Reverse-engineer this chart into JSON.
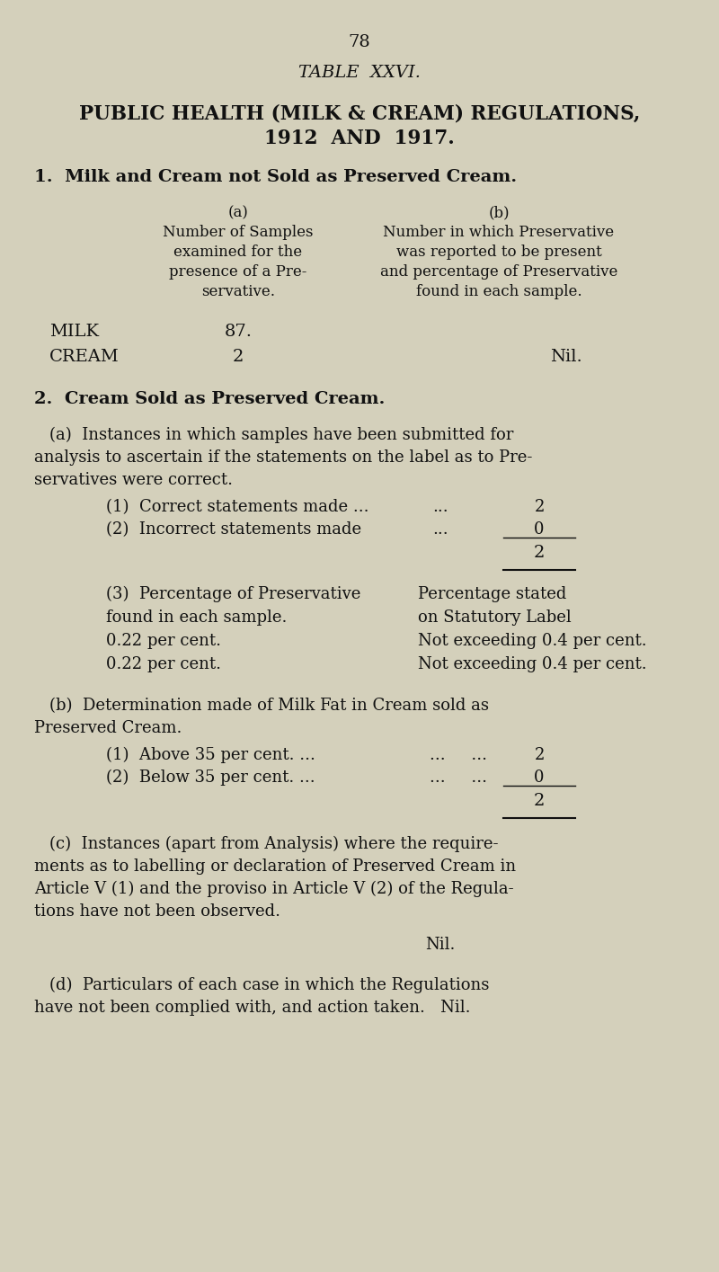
{
  "bg_color": "#d4d0bb",
  "text_color": "#111111",
  "page_number": "78",
  "table_title": "TABLE  XXVI.",
  "main_title_line1": "PUBLIC HEALTH (MILK & CREAM) REGULATIONS,",
  "main_title_line2": "1912  AND  1917.",
  "section1_heading": "1.  Milk and Cream not Sold as Preserved Cream.",
  "col_a_header_lines": [
    "(a)",
    "Number of Samples",
    "examined for the",
    "presence of a Pre-",
    "servative."
  ],
  "col_b_header_lines": [
    "(b)",
    "Number in which Preservative",
    "was reported to be present",
    "and percentage of Preservative",
    "found in each sample."
  ],
  "milk_label": "MILK",
  "milk_value": "87.",
  "cream_label": "CREAM",
  "cream_value": "2",
  "cream_b_value": "Nil.",
  "section2_heading": "2.  Cream Sold as Preserved Cream.",
  "section2a_intro_lines": [
    "(a)  Instances in which samples have been submitted for",
    "analysis to ascertain if the statements on the label as to Pre-",
    "servatives were correct."
  ],
  "s2a_item1_left": "(1)  Correct statements made ...",
  "s2a_item1_dots": "...",
  "s2a_item1_val": "2",
  "s2a_item2_left": "(2)  Incorrect statements made",
  "s2a_item2_dots": "...",
  "s2a_item2_val": "0",
  "s2a_total": "2",
  "s2a3_left_lines": [
    "(3)  Percentage of Preservative",
    "found in each sample.",
    "0.22 per cent.",
    "0.22 per cent."
  ],
  "s2a3_right_lines": [
    "Percentage stated",
    "on Statutory Label",
    "Not exceeding 0.4 per cent.",
    "Not exceeding 0.4 per cent."
  ],
  "section2b_intro_lines": [
    "(b)  Determination made of Milk Fat in Cream sold as",
    "Preserved Cream."
  ],
  "s2b_item1_left": "(1)  Above 35 per cent. ...",
  "s2b_item1_dots": "...     ...",
  "s2b_item1_val": "2",
  "s2b_item2_left": "(2)  Below 35 per cent. ...",
  "s2b_item2_dots": "...     ...",
  "s2b_item2_val": "0",
  "s2b_total": "2",
  "section2c_intro_lines": [
    "(c)  Instances (apart from Analysis) where the require-",
    "ments as to labelling or declaration of Preserved Cream in",
    "Article V (1) and the proviso in Article V (2) of the Regula-",
    "tions have not been observed."
  ],
  "s2c_nil": "Nil.",
  "section2d_lines": [
    "(d)  Particulars of each case in which the Regulations",
    "have not been complied with, and action taken.   Nil."
  ]
}
